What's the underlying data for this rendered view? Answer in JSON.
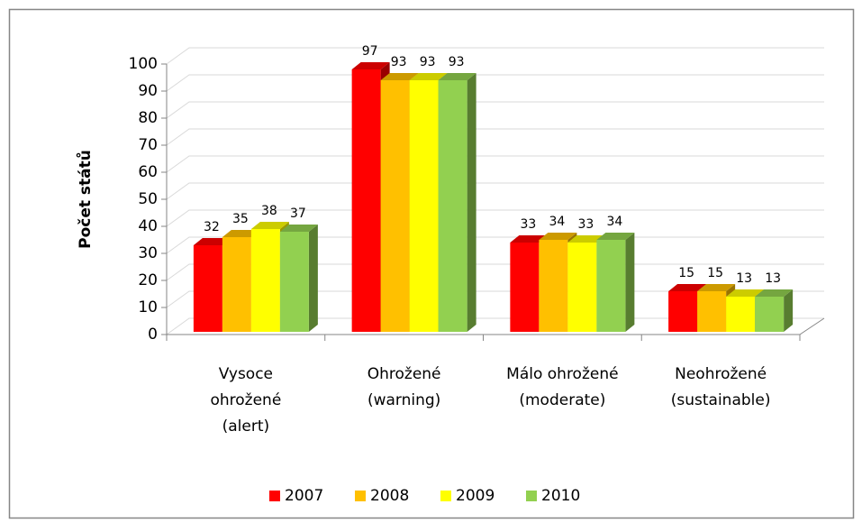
{
  "chart_data": {
    "type": "bar3d",
    "ylabel": "Počet států",
    "categories": [
      [
        "Vysoce",
        "ohrožené",
        "(alert)"
      ],
      [
        "Ohrožené",
        "(warning)"
      ],
      [
        "Málo ohrožené",
        "(moderate)"
      ],
      [
        "Neohrožené",
        "(sustainable)"
      ]
    ],
    "series": [
      {
        "name": "2007",
        "color": "#ff0000",
        "values": [
          32,
          97,
          33,
          15
        ]
      },
      {
        "name": "2008",
        "color": "#ffc000",
        "values": [
          35,
          93,
          34,
          15
        ]
      },
      {
        "name": "2009",
        "color": "#ffff00",
        "values": [
          38,
          93,
          33,
          13
        ]
      },
      {
        "name": "2010",
        "color": "#92d050",
        "values": [
          37,
          93,
          34,
          13
        ]
      }
    ],
    "ylim": [
      0,
      100
    ],
    "yticks": [
      0,
      10,
      20,
      30,
      40,
      50,
      60,
      70,
      80,
      90,
      100
    ],
    "grid": true,
    "legend": "bottom"
  }
}
